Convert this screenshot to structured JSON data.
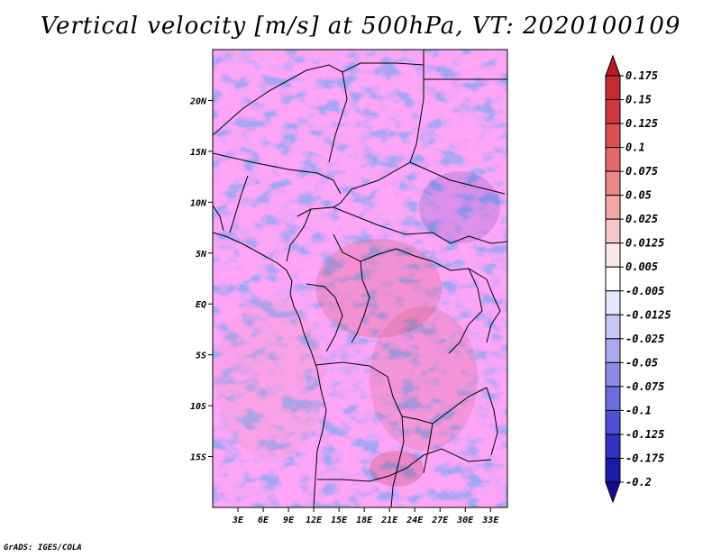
{
  "title": "Vertical velocity [m/s] at 500hPa, VT: 2020100109",
  "credit": "GrADS: IGES/COLA",
  "chart_data": {
    "type": "heatmap",
    "title": "Vertical velocity [m/s] at 500hPa, VT: 2020100109",
    "variable": "Vertical velocity",
    "units": "m/s",
    "level": "500hPa",
    "valid_time": "2020100109",
    "lon_range": [
      0,
      35
    ],
    "lat_range": [
      -20,
      25
    ],
    "x_ticks": [
      {
        "value": 3,
        "label": "3E"
      },
      {
        "value": 6,
        "label": "6E"
      },
      {
        "value": 9,
        "label": "9E"
      },
      {
        "value": 12,
        "label": "12E"
      },
      {
        "value": 15,
        "label": "15E"
      },
      {
        "value": 18,
        "label": "18E"
      },
      {
        "value": 21,
        "label": "21E"
      },
      {
        "value": 24,
        "label": "24E"
      },
      {
        "value": 27,
        "label": "27E"
      },
      {
        "value": 30,
        "label": "30E"
      },
      {
        "value": 33,
        "label": "33E"
      }
    ],
    "y_ticks": [
      {
        "value": 20,
        "label": "20N"
      },
      {
        "value": 15,
        "label": "15N"
      },
      {
        "value": 10,
        "label": "10N"
      },
      {
        "value": 5,
        "label": "5N"
      },
      {
        "value": 0,
        "label": "EQ"
      },
      {
        "value": -5,
        "label": "5S"
      },
      {
        "value": -10,
        "label": "10S"
      },
      {
        "value": -15,
        "label": "15S"
      }
    ],
    "colorbar": {
      "orientation": "vertical",
      "levels": [
        "0.175",
        "0.15",
        "0.125",
        "0.1",
        "0.075",
        "0.05",
        "0.025",
        "0.0125",
        "0.005",
        "-0.005",
        "-0.0125",
        "-0.025",
        "-0.05",
        "-0.075",
        "-0.1",
        "-0.125",
        "-0.175",
        "-0.2"
      ],
      "colors": [
        "#b81c20",
        "#c42a2e",
        "#d03a3c",
        "#dc5050",
        "#e46a6a",
        "#ec8888",
        "#f2a6a6",
        "#f8c8c8",
        "#fce8e8",
        "#ffffff",
        "#e6e6fc",
        "#c8c8f6",
        "#aaaaf0",
        "#8c8ce8",
        "#6e6ede",
        "#5050d2",
        "#3232c0",
        "#1a1aa8",
        "#0c0c90"
      ],
      "top_color": "#b81c20",
      "bottom_color": "#1a0c90"
    }
  }
}
